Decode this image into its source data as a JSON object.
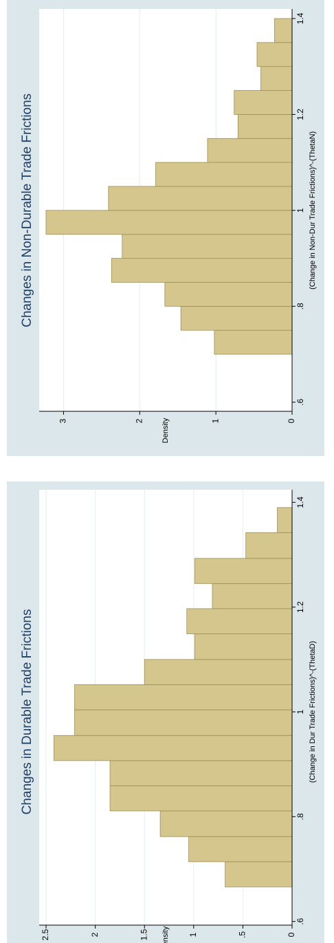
{
  "chart_data": [
    {
      "type": "histogram",
      "title": "Changes in Non-Durable Trade Frictions",
      "xlabel": "(Change in Non-Dur Trade Frictions)^-(ThetaN)",
      "ylabel": "Density",
      "bins": [
        0.7,
        0.75,
        0.8,
        0.85,
        0.9,
        0.95,
        1.0,
        1.05,
        1.1,
        1.15,
        1.2,
        1.25,
        1.3,
        1.35,
        1.4
      ],
      "values": [
        1.02,
        1.46,
        1.67,
        2.37,
        2.23,
        3.23,
        2.41,
        1.79,
        1.11,
        0.71,
        0.76,
        0.41,
        0.46,
        0.23
      ],
      "color": "#d4c68c",
      "xlim": [
        0.581,
        1.42
      ],
      "xticks": [
        {
          "value": 0.6,
          "label": ".6"
        },
        {
          "value": 0.8,
          "label": ".8"
        },
        1,
        1.2,
        1.4
      ],
      "ylim": [
        0,
        3.32
      ],
      "yticks": [
        0,
        1,
        2,
        3
      ],
      "grid": true
    },
    {
      "type": "histogram",
      "title": "Changes in Durable Trade Frictions",
      "xlabel": "(Change in Dur Trade Frictions)^-(ThetaD)",
      "ylabel": "Density",
      "bins": [
        0.666,
        0.714,
        0.762,
        0.811,
        0.859,
        0.907,
        0.955,
        1.004,
        1.052,
        1.1,
        1.149,
        1.197,
        1.245,
        1.293,
        1.342,
        1.39
      ],
      "values": [
        0.68,
        1.05,
        1.34,
        1.85,
        1.85,
        2.42,
        2.21,
        2.21,
        1.5,
        0.99,
        1.07,
        0.81,
        0.99,
        0.47,
        0.15
      ],
      "color": "#d4c68c",
      "xlim": [
        0.593,
        1.424
      ],
      "xticks": [
        {
          "value": 0.6,
          "label": ".6"
        },
        {
          "value": 0.8,
          "label": ".8"
        },
        1,
        1.2,
        1.4
      ],
      "ylim": [
        0,
        2.57
      ],
      "yticks": [
        0,
        {
          "value": 0.5,
          "label": ".5"
        },
        1,
        1.5,
        2,
        2.5
      ],
      "grid": true
    }
  ]
}
